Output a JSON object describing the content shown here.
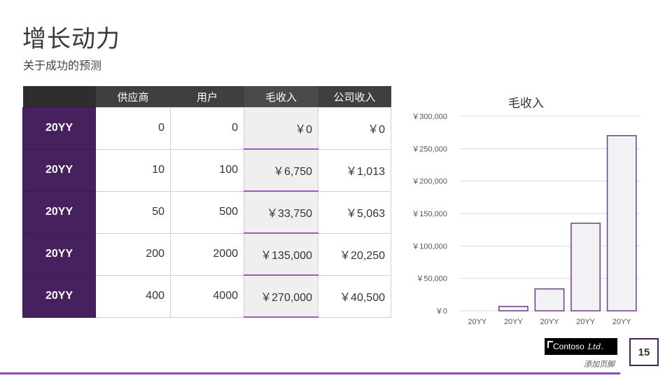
{
  "slide": {
    "title": "增长动力",
    "subtitle": "关于成功的预测",
    "page_number": "15",
    "logo_brand": "Contoso",
    "logo_suffix": "Ltd.",
    "footer": "添加页脚",
    "accent_color": "#46215e",
    "highlight_color": "#9b59c9"
  },
  "table": {
    "headers": [
      "",
      "供应商",
      "用户",
      "毛收入",
      "公司收入"
    ],
    "rows": [
      {
        "year": "20YY",
        "suppliers": "0",
        "users": "0",
        "gross": "￥0",
        "company": "￥0"
      },
      {
        "year": "20YY",
        "suppliers": "10",
        "users": "100",
        "gross": "￥6,750",
        "company": "￥1,013"
      },
      {
        "year": "20YY",
        "suppliers": "50",
        "users": "500",
        "gross": "￥33,750",
        "company": "￥5,063"
      },
      {
        "year": "20YY",
        "suppliers": "200",
        "users": "2000",
        "gross": "￥135,000",
        "company": "￥20,250"
      },
      {
        "year": "20YY",
        "suppliers": "400",
        "users": "4000",
        "gross": "￥270,000",
        "company": "￥40,500"
      }
    ]
  },
  "chart_data": {
    "type": "bar",
    "title": "毛收入",
    "categories": [
      "20YY",
      "20YY",
      "20YY",
      "20YY",
      "20YY"
    ],
    "values": [
      0,
      6750,
      33750,
      135000,
      270000
    ],
    "ylim": [
      0,
      300000
    ],
    "yticks": [
      0,
      50000,
      100000,
      150000,
      200000,
      250000,
      300000
    ],
    "ytick_labels": [
      "￥0",
      "￥50,000",
      "￥100,000",
      "￥150,000",
      "￥200,000",
      "￥250,000",
      "￥300,000"
    ],
    "grid": true,
    "bar_fill": "#f2f1f4",
    "bar_stroke": "#6b3f86"
  }
}
